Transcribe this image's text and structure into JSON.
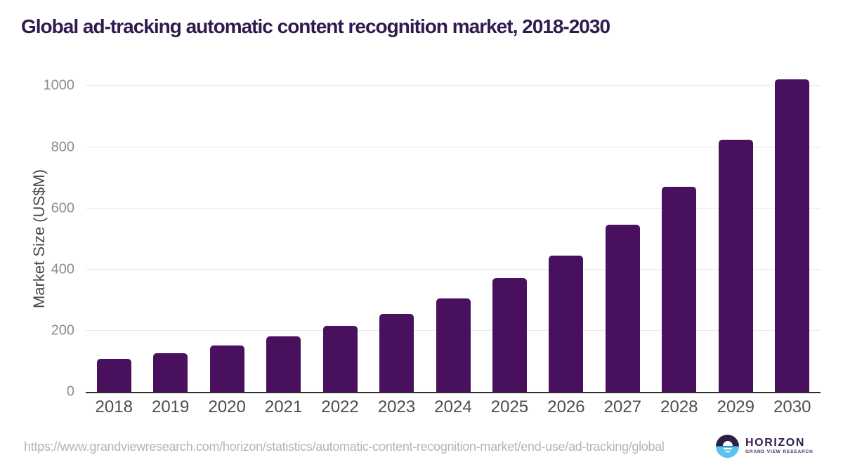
{
  "header": {
    "title": "Global ad-tracking automatic content recognition market, 2018-2030",
    "title_color": "#2f1b4d"
  },
  "chart_data": {
    "type": "bar",
    "title": "Global ad-tracking automatic content recognition market, 2018-2030",
    "categories": [
      "2018",
      "2019",
      "2020",
      "2021",
      "2022",
      "2023",
      "2024",
      "2025",
      "2026",
      "2027",
      "2028",
      "2029",
      "2030"
    ],
    "values": [
      108,
      126,
      151,
      181,
      215,
      256,
      306,
      371,
      446,
      547,
      671,
      824,
      1022
    ],
    "xlabel": "",
    "ylabel": "Market Size (US$M)",
    "yticks": [
      0,
      200,
      400,
      600,
      800,
      1000
    ],
    "ylim": [
      0,
      1063
    ],
    "grid": true,
    "legend": false,
    "bar_color": "#49105e",
    "gridline_color": "#e7e7e7",
    "axis_line_color": "#2e2e2e"
  },
  "footer": {
    "source_url": "https://www.grandviewresearch.com/horizon/statistics/automatic-content-recognition-market/end-use/ad-tracking/global",
    "logo": {
      "brand": "HORIZON",
      "subbrand": "GRAND VIEW RESEARCH",
      "navy": "#2d2047",
      "blue": "#5cc3ef"
    }
  }
}
